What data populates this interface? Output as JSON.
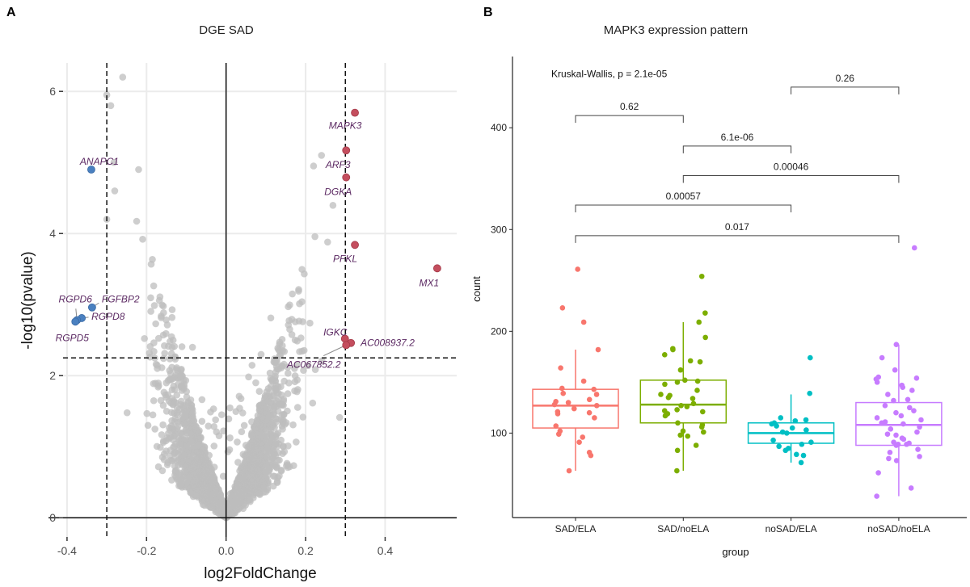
{
  "chart_data": [
    {
      "panel_letter": "A",
      "type": "scatter",
      "title": "DGE SAD",
      "xlabel": "log2FoldChange",
      "ylabel": "-log10(pvalue)",
      "xlim": [
        -0.41,
        0.58
      ],
      "ylim": [
        -0.27,
        6.4
      ],
      "x_ticks": [
        -0.4,
        -0.2,
        0.0,
        0.2,
        0.4
      ],
      "x_tick_labels": [
        "-0.4",
        "-0.2",
        "0.0",
        "0.2",
        "0.4"
      ],
      "y_ticks": [
        0,
        2,
        4,
        6
      ],
      "y_tick_labels": [
        "0",
        "2",
        "4",
        "6"
      ],
      "grid": true,
      "thresholds": {
        "log2fc": [
          -0.3,
          0.3
        ],
        "neg_log10_p": 2.25
      },
      "colors": {
        "nonsignificant": "#bdbdbd",
        "up": "#c44e5e",
        "down": "#4a80c0",
        "label": "#5c2a63"
      },
      "background_points_note": "",
      "highlighted": [
        {
          "label": "MAPK3",
          "x": 0.324,
          "y": 5.7,
          "direction": "up"
        },
        {
          "label": "ARF3",
          "x": 0.302,
          "y": 5.17,
          "direction": "up"
        },
        {
          "label": "DGKA",
          "x": 0.302,
          "y": 4.79,
          "direction": "up"
        },
        {
          "label": "PFKL",
          "x": 0.324,
          "y": 3.84,
          "direction": "up"
        },
        {
          "label": "MX1",
          "x": 0.531,
          "y": 3.51,
          "direction": "up"
        },
        {
          "label": "IGKC",
          "x": 0.299,
          "y": 2.52,
          "direction": "up"
        },
        {
          "label": "AC008937.2",
          "x": 0.314,
          "y": 2.46,
          "direction": "up"
        },
        {
          "label": "AC067852.2",
          "x": 0.302,
          "y": 2.43,
          "direction": "up"
        },
        {
          "label": "ANAPC1",
          "x": -0.339,
          "y": 4.9,
          "direction": "down"
        },
        {
          "label": "FGFBP2",
          "x": -0.337,
          "y": 2.96,
          "direction": "down"
        },
        {
          "label": "RGPD8",
          "x": -0.363,
          "y": 2.81,
          "direction": "down"
        },
        {
          "label": "RGPD6",
          "x": -0.375,
          "y": 2.78,
          "direction": "down"
        },
        {
          "label": "RGPD5",
          "x": -0.379,
          "y": 2.76,
          "direction": "down"
        }
      ]
    },
    {
      "panel_letter": "B",
      "type": "box",
      "title": "MAPK3 expression pattern",
      "xlabel": "group",
      "ylabel": "count",
      "ylim": [
        17,
        470
      ],
      "y_ticks": [
        100,
        200,
        300,
        400
      ],
      "y_tick_labels": [
        "100",
        "200",
        "300",
        "400"
      ],
      "grid": false,
      "annotation": "Kruskal-Wallis, p = 2.1e-05",
      "annotation_y": 453,
      "categories": [
        "SAD/ELA",
        "SAD/noELA",
        "noSAD/ELA",
        "noSAD/noELA"
      ],
      "colors": [
        "#F8766D",
        "#7CAE00",
        "#00BFC4",
        "#C77CFF"
      ],
      "boxes": [
        {
          "q1": 105,
          "median": 127,
          "q3": 143,
          "whisker_low": 63,
          "whisker_high": 182
        },
        {
          "q1": 110,
          "median": 128,
          "q3": 152,
          "whisker_low": 63,
          "whisker_high": 209
        },
        {
          "q1": 90,
          "median": 100,
          "q3": 110,
          "whisker_low": 71,
          "whisker_high": 138
        },
        {
          "q1": 88,
          "median": 108,
          "q3": 130,
          "whisker_low": 38,
          "whisker_high": 187
        }
      ],
      "points": [
        [
          261,
          223,
          209,
          182,
          164,
          151,
          144,
          143,
          139,
          138,
          133,
          131,
          130,
          128,
          127,
          124,
          121,
          120,
          119,
          115,
          107,
          102,
          99,
          96,
          91,
          81,
          78,
          63
        ],
        [
          254,
          218,
          209,
          194,
          183,
          182,
          177,
          171,
          170,
          162,
          152,
          151,
          150,
          148,
          142,
          138,
          137,
          135,
          134,
          129,
          127,
          126,
          123,
          122,
          121,
          119,
          117,
          110,
          108,
          106,
          102,
          101,
          98,
          97,
          88,
          83,
          63
        ],
        [
          174,
          139,
          115,
          113,
          112,
          110,
          109,
          107,
          105,
          103,
          101,
          100,
          93,
          91,
          89,
          87,
          85,
          83,
          79,
          78,
          71
        ],
        [
          282,
          187,
          174,
          162,
          155,
          154,
          153,
          150,
          147,
          145,
          142,
          138,
          133,
          132,
          127,
          125,
          122,
          120,
          117,
          115,
          113,
          111,
          110,
          109,
          106,
          104,
          101,
          99,
          98,
          95,
          94,
          91,
          90,
          89,
          89,
          88,
          84,
          81,
          77,
          75,
          73,
          61,
          46,
          38
        ]
      ],
      "comparisons": [
        {
          "from": 2,
          "to": 3,
          "y": 440,
          "label": "0.26"
        },
        {
          "from": 0,
          "to": 1,
          "y": 412,
          "label": "0.62"
        },
        {
          "from": 1,
          "to": 2,
          "y": 382,
          "label": "6.1e-06"
        },
        {
          "from": 1,
          "to": 3,
          "y": 353,
          "label": "0.00046"
        },
        {
          "from": 0,
          "to": 2,
          "y": 324,
          "label": "0.00057"
        },
        {
          "from": 0,
          "to": 3,
          "y": 294,
          "label": "0.017"
        }
      ]
    }
  ]
}
